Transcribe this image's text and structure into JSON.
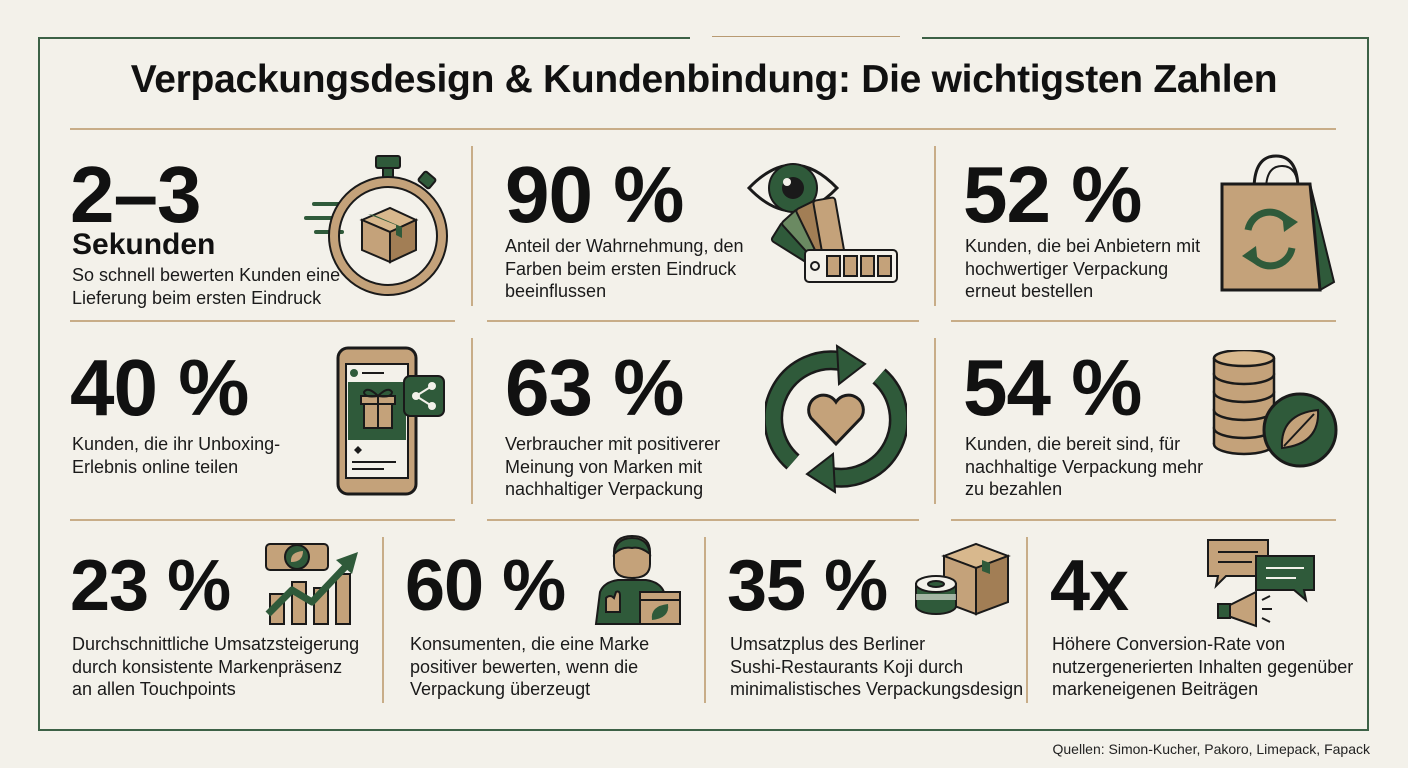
{
  "title": "Verpackungsdesign & Kundenbindung: Die wichtigsten Zahlen",
  "colors": {
    "green": "#2f5a3a",
    "kraft": "#c4a27a",
    "kraft_dark": "#a27e55",
    "line": "#c8ad88",
    "background": "#f3f1ea"
  },
  "stats": [
    {
      "value": "2–3",
      "unit": "Sekunden",
      "description": "So schnell bewerten Kunden eine\nLieferung beim ersten Eindruck",
      "icon": "stopwatch-box-icon"
    },
    {
      "value": "90 %",
      "description": "Anteil der Wahrnehmung, den\nFarben beim ersten Eindruck\nbeeinflussen",
      "icon": "eye-swatch-icon"
    },
    {
      "value": "52 %",
      "description": "Kunden, die bei Anbietern mit\nhochwertiger Verpackung\nerneut bestellen",
      "icon": "shopping-bag-recycle-icon"
    },
    {
      "value": "40 %",
      "description": "Kunden, die ihr Unboxing-\nErlebnis online teilen",
      "icon": "phone-share-icon"
    },
    {
      "value": "63 %",
      "description": "Verbraucher mit positiverer\nMeinung von Marken mit\nnachhaltiger Verpackung",
      "icon": "heart-cycle-icon"
    },
    {
      "value": "54 %",
      "description": "Kunden, die bereit sind, für\nnachhaltige Verpackung mehr\nzu bezahlen",
      "icon": "coins-leaf-icon"
    },
    {
      "value": "23 %",
      "description": "Durchschnittliche Umsatzsteigerung\ndurch konsistente Markenpräsenz\nan allen Touchpoints",
      "icon": "growth-chart-icon"
    },
    {
      "value": "60 %",
      "description": "Konsumenten, die eine Marke\npositiver bewerten, wenn die\nVerpackung überzeugt",
      "icon": "person-package-icon"
    },
    {
      "value": "35 %",
      "description": "Umsatzplus des Berliner\nSushi-Restaurants Koji durch\nminimalistisches Verpackungsdesign",
      "icon": "box-tape-icon"
    },
    {
      "value": "4x",
      "description": "Höhere Conversion-Rate von\nnutzergenerierten Inhalten gegenüber\nmarkeneigenen Beiträgen",
      "icon": "chat-megaphone-icon"
    }
  ],
  "sources": "Quellen: Simon-Kucher, Pakoro, Limepack, Fapack"
}
